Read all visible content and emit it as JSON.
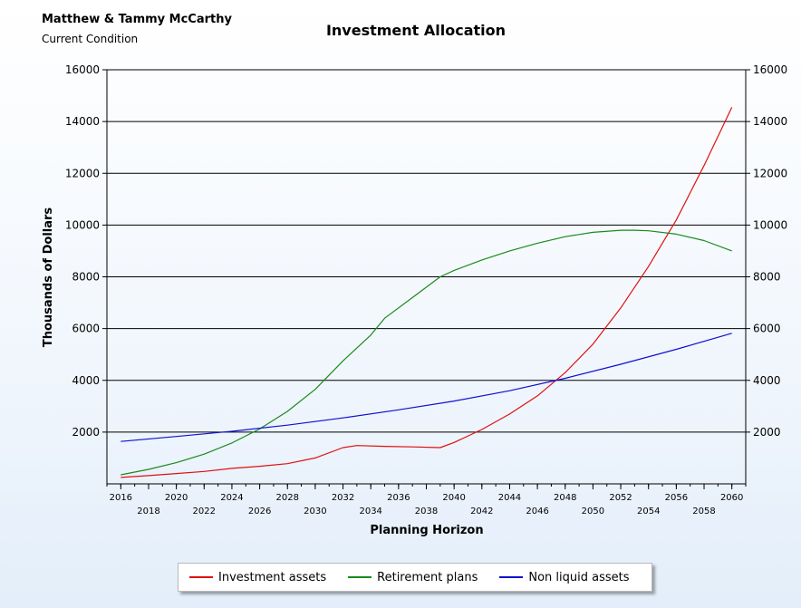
{
  "header": {
    "client_name": "Matthew & Tammy McCarthy",
    "condition": "Current Condition"
  },
  "chart_data": {
    "type": "line",
    "title": "Investment Allocation",
    "xlabel": "Planning Horizon",
    "ylabel": "Thousands of Dollars",
    "ylim": [
      0,
      16000
    ],
    "xlim": [
      2015,
      2061
    ],
    "yticks": [
      2000,
      4000,
      6000,
      8000,
      10000,
      12000,
      14000,
      16000
    ],
    "xticks_top": [
      2016,
      2020,
      2024,
      2028,
      2032,
      2036,
      2040,
      2044,
      2048,
      2052,
      2056,
      2060
    ],
    "xticks_bottom": [
      2018,
      2022,
      2026,
      2030,
      2034,
      2038,
      2042,
      2046,
      2050,
      2054,
      2058
    ],
    "grid": true,
    "legend_position": "bottom",
    "series": [
      {
        "name": "Investment assets",
        "color": "#e01010",
        "x": [
          2016,
          2018,
          2020,
          2022,
          2024,
          2026,
          2028,
          2030,
          2032,
          2033,
          2035,
          2037,
          2039,
          2040,
          2042,
          2044,
          2046,
          2048,
          2050,
          2052,
          2054,
          2056,
          2058,
          2060
        ],
        "y": [
          250,
          320,
          400,
          480,
          600,
          680,
          780,
          1000,
          1400,
          1480,
          1450,
          1430,
          1400,
          1600,
          2100,
          2700,
          3400,
          4300,
          5400,
          6800,
          8400,
          10200,
          12300,
          14550
        ]
      },
      {
        "name": "Retirement plans",
        "color": "#1a8a1a",
        "x": [
          2016,
          2018,
          2020,
          2022,
          2024,
          2026,
          2028,
          2030,
          2032,
          2034,
          2035,
          2037,
          2039,
          2040,
          2042,
          2044,
          2046,
          2048,
          2050,
          2052,
          2053,
          2054,
          2056,
          2058,
          2060
        ],
        "y": [
          350,
          560,
          820,
          1150,
          1580,
          2120,
          2800,
          3650,
          4750,
          5750,
          6400,
          7200,
          8000,
          8250,
          8650,
          9000,
          9300,
          9550,
          9720,
          9800,
          9800,
          9780,
          9650,
          9400,
          9000
        ]
      },
      {
        "name": "Non liquid assets",
        "color": "#1010d0",
        "x": [
          2016,
          2020,
          2024,
          2028,
          2032,
          2036,
          2040,
          2044,
          2048,
          2052,
          2056,
          2060
        ],
        "y": [
          1640,
          1830,
          2030,
          2270,
          2550,
          2860,
          3200,
          3600,
          4080,
          4620,
          5200,
          5820
        ]
      }
    ]
  }
}
